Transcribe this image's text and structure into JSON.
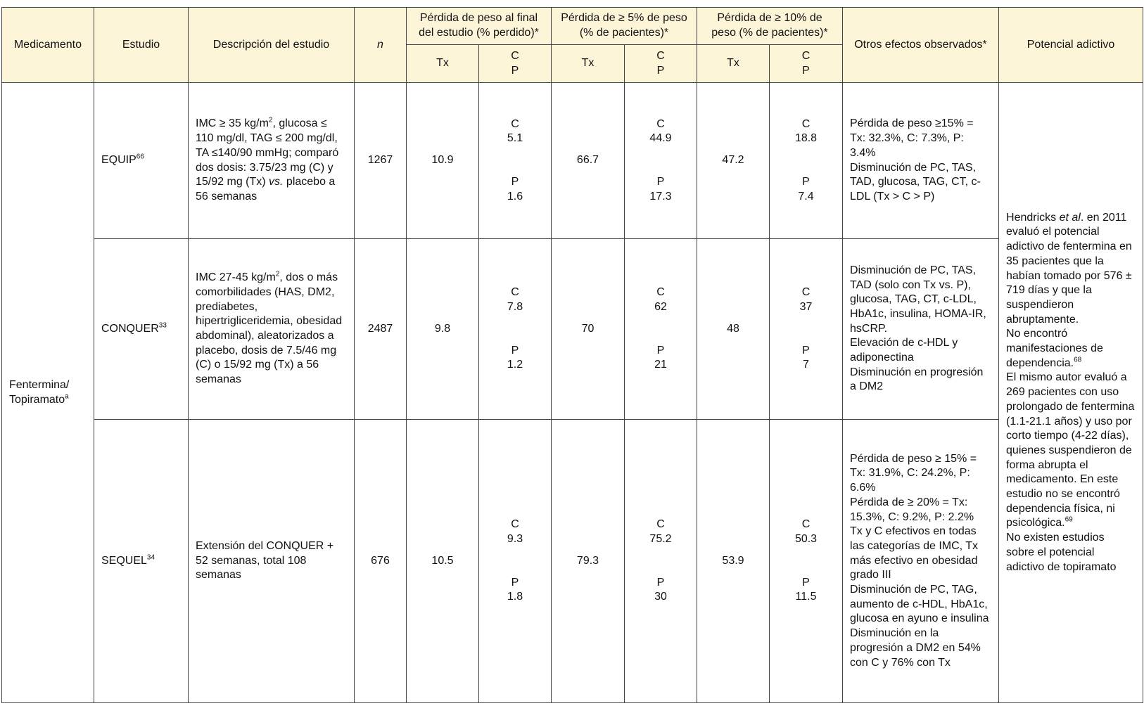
{
  "headers": {
    "medicamento": "Medicamento",
    "estudio": "Estudio",
    "descripcion": "Descripción del estudio",
    "n": "n",
    "perdida_final": "Pérdida de peso al final del estudio (% perdido)*",
    "perdida_5": "Pérdida de ≥ 5% de peso (% de pacientes)*",
    "perdida_10": "Pérdida de ≥ 10% de peso (% de pacientes)*",
    "otros": "Otros efectos observados*",
    "adictivo": "Potencial adictivo",
    "tx": "Tx",
    "c": "C",
    "p": "P"
  },
  "medicamento": {
    "name": "Fentermina/ Topiramato",
    "sup": "a"
  },
  "rows": [
    {
      "estudio": "EQUIP",
      "ref": "66",
      "desc_pre": "IMC ≥ 35 kg/m",
      "desc_sup": "2",
      "desc_post": ", glucosa ≤ 110 mg/dl, TAG ≤ 200 mg/dl, TA ≤140/90 mmHg; comparó dos dosis: 3.75/23 mg (C) y 15/92 mg (Tx) ",
      "desc_italic": "vs.",
      "desc_end": " placebo a 56 semanas",
      "n": "1267",
      "final_tx": "10.9",
      "final_c": "5.1",
      "final_p": "1.6",
      "p5_tx": "66.7",
      "p5_c": "44.9",
      "p5_p": "17.3",
      "p10_tx": "47.2",
      "p10_c": "18.8",
      "p10_p": "7.4",
      "otros": [
        "Pérdida de peso ≥15% = Tx: 32.3%, C: 7.3%, P: 3.4%",
        "Disminución de PC, TAS, TAD, glucosa, TAG, CT, c-LDL (Tx > C > P)"
      ]
    },
    {
      "estudio": "CONQUER",
      "ref": "33",
      "desc_pre": "IMC 27-45 kg/m",
      "desc_sup": "2",
      "desc_post": ", dos o más comorbilidades (HAS, DM2, prediabetes, hipertrigliceridemia, obesidad abdominal), aleatorizados a placebo, dosis de 7.5/46 mg (C) o 15/92 mg (Tx) a 56 semanas",
      "n": "2487",
      "final_tx": "9.8",
      "final_c": "7.8",
      "final_p": "1.2",
      "p5_tx": "70",
      "p5_c": "62",
      "p5_p": "21",
      "p10_tx": "48",
      "p10_c": "37",
      "p10_p": "7",
      "otros": [
        "Disminución de PC, TAS, TAD (solo con Tx vs. P), glucosa, TAG, CT, c-LDL, HbA1c, insulina, HOMA-IR, hsCRP.",
        "Elevación de c-HDL y adiponectina",
        "Disminución en progresión a DM2"
      ]
    },
    {
      "estudio": "SEQUEL",
      "ref": "34",
      "desc_pre": "Extensión del CONQUER + 52 semanas, total 108 semanas",
      "n": "676",
      "final_tx": "10.5",
      "final_c": "9.3",
      "final_p": "1.8",
      "p5_tx": "79.3",
      "p5_c": "75.2",
      "p5_p": "30",
      "p10_tx": "53.9",
      "p10_c": "50.3",
      "p10_p": "11.5",
      "otros": [
        "Pérdida de peso ≥ 15% = Tx: 31.9%, C: 24.2%, P: 6.6%",
        "Pérdida de ≥ 20% = Tx: 15.3%, C: 9.2%, P: 2.2%",
        "Tx y C efectivos en todas las categorías de IMC, Tx más efectivo en obesidad grado III",
        "Disminución de PC, TAG, aumento de c-HDL, HbA1c, glucosa en ayuno e insulina",
        "Disminución en la progresión a DM2 en 54% con C y 76% con Tx"
      ]
    }
  ],
  "adictivo": {
    "p1_a": "Hendricks ",
    "p1_it": "et al",
    "p1_b": ". en 2011 evaluó el potencial adictivo de fentermina en 35 pacientes que la habían tomado por 576 ± 719 días y que la suspendieron abruptamente.",
    "p2": "No encontró manifestaciones de dependencia.",
    "p2_ref": "68",
    "p3": "El mismo autor evaluó a 269 pacientes con uso prolongado de fentermina (1.1-21.1 años) y uso por corto tiempo (4-22 días), quienes suspendieron de forma abrupta el medicamento. En este estudio no se encontró dependencia física, ni psicológica.",
    "p3_ref": "69",
    "p4": "No existen estudios sobre el potencial adictivo de topiramato"
  },
  "colors": {
    "header_bg": "#fdf5d8",
    "border": "#444444"
  }
}
